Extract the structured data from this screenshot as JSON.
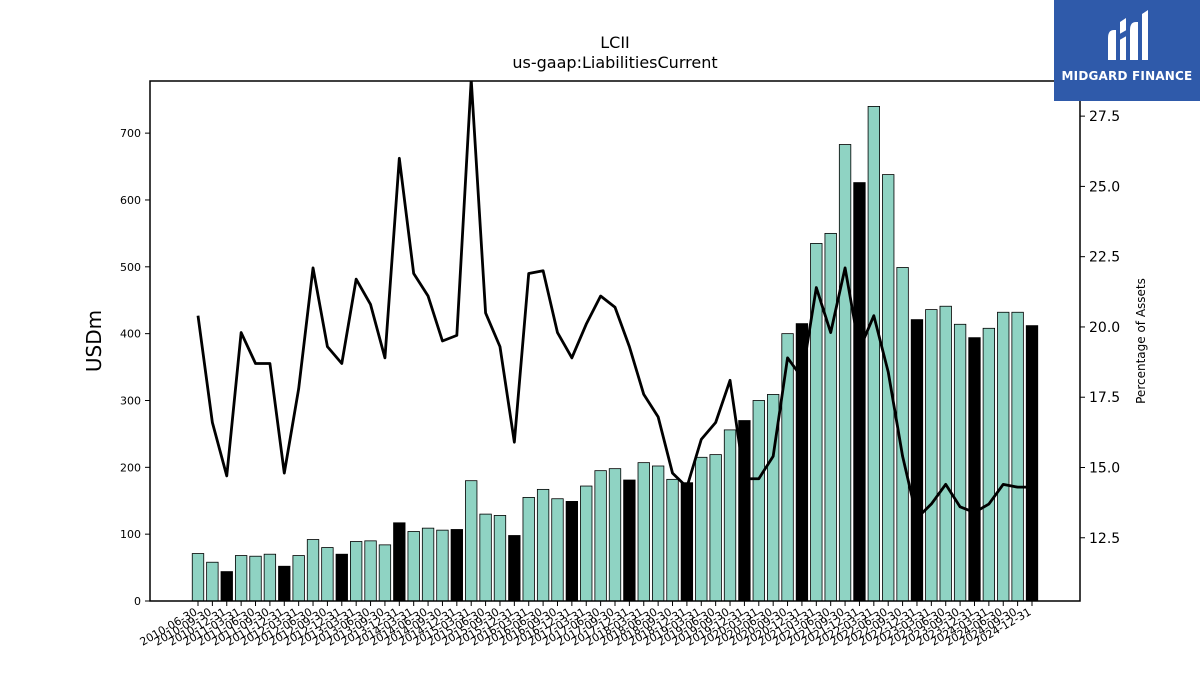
{
  "chart_data": {
    "type": "bar+line",
    "title": "LCII",
    "subtitle": "us-gaap:LiabilitiesCurrent",
    "ylabel": "USDm",
    "y2label": "Percentage of Assets",
    "ylim": [
      0,
      778
    ],
    "y2lim": [
      10.25,
      28.75
    ],
    "yticks": [
      0,
      100,
      200,
      300,
      400,
      500,
      600,
      700
    ],
    "y2ticks": [
      12.5,
      15.0,
      17.5,
      20.0,
      22.5,
      25.0,
      27.5
    ],
    "categories": [
      "2010-06-30",
      "2010-09-30",
      "2010-12-31",
      "2011-03-31",
      "2011-06-30",
      "2011-09-30",
      "2011-12-31",
      "2012-03-31",
      "2012-06-30",
      "2012-09-30",
      "2012-12-31",
      "2013-03-31",
      "2013-06-30",
      "2013-09-30",
      "2013-12-31",
      "2014-03-31",
      "2014-06-30",
      "2014-09-30",
      "2014-12-31",
      "2015-03-31",
      "2015-06-30",
      "2015-09-30",
      "2015-12-31",
      "2016-03-31",
      "2016-06-30",
      "2016-09-30",
      "2016-12-31",
      "2017-03-31",
      "2017-06-30",
      "2017-09-30",
      "2017-12-31",
      "2018-03-31",
      "2018-06-30",
      "2018-09-30",
      "2018-12-31",
      "2019-03-31",
      "2019-06-30",
      "2019-09-30",
      "2019-12-31",
      "2020-03-31",
      "2020-06-30",
      "2020-09-30",
      "2020-12-31",
      "2021-03-31",
      "2021-06-30",
      "2021-09-30",
      "2021-12-31",
      "2022-03-31",
      "2022-06-30",
      "2022-09-30",
      "2022-12-31",
      "2023-03-31",
      "2023-06-30",
      "2023-09-30",
      "2023-12-31",
      "2024-03-31",
      "2024-06-30",
      "2024-09-30",
      "2024-12-31"
    ],
    "series": [
      {
        "type": "bar",
        "values": [
          71,
          58,
          44,
          68,
          67,
          70,
          52,
          68,
          92,
          80,
          70,
          89,
          90,
          84,
          117,
          104,
          109,
          106,
          107,
          180,
          130,
          128,
          98,
          155,
          167,
          153,
          149,
          172,
          195,
          198,
          181,
          207,
          202,
          182,
          177,
          215,
          219,
          256,
          270,
          300,
          309,
          400,
          415,
          535,
          550,
          683,
          626,
          740,
          638,
          499,
          421,
          436,
          441,
          414,
          394,
          408,
          432,
          432,
          412
        ],
        "fourth_quarter_color": "#000000",
        "color": "#8fd3c3"
      },
      {
        "type": "line",
        "axis": "right",
        "color": "#000000",
        "values": [
          20.4,
          16.6,
          14.7,
          19.8,
          18.7,
          18.7,
          14.8,
          17.8,
          22.1,
          19.3,
          18.7,
          21.7,
          20.8,
          18.9,
          26.0,
          21.9,
          21.1,
          19.5,
          19.7,
          28.8,
          20.5,
          19.3,
          15.9,
          21.9,
          22.0,
          19.8,
          18.9,
          20.1,
          21.1,
          20.7,
          19.3,
          17.6,
          16.8,
          14.8,
          14.3,
          16.0,
          16.6,
          18.1,
          14.6,
          14.6,
          15.4,
          18.9,
          18.2,
          21.4,
          19.8,
          22.1,
          19.2,
          20.4,
          18.4,
          15.4,
          13.2,
          13.7,
          14.4,
          13.6,
          13.4,
          13.7,
          14.4,
          14.3,
          14.3
        ]
      }
    ]
  },
  "logo": {
    "text": "MIDGARD FINANCE",
    "bg_color": "#2f5aaa"
  }
}
